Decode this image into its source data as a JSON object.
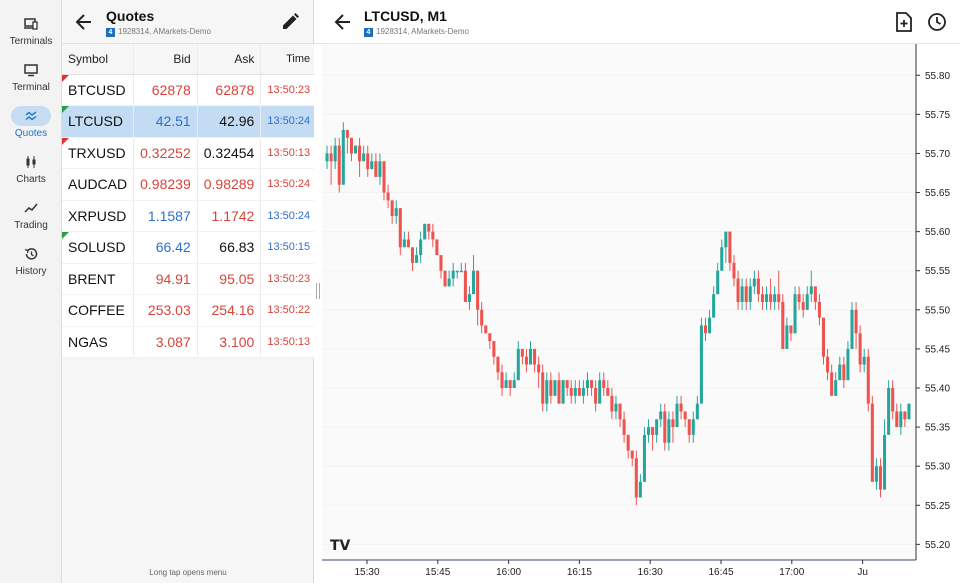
{
  "nav": {
    "items": [
      {
        "id": "terminals",
        "label": "Terminals",
        "icon": "devices-icon",
        "active": false
      },
      {
        "id": "terminal",
        "label": "Terminal",
        "icon": "monitor-icon",
        "active": false
      },
      {
        "id": "quotes",
        "label": "Quotes",
        "icon": "quotes-icon",
        "active": true
      },
      {
        "id": "charts",
        "label": "Charts",
        "icon": "candles-icon",
        "active": false
      },
      {
        "id": "trading",
        "label": "Trading",
        "icon": "trend-icon",
        "active": false
      },
      {
        "id": "history",
        "label": "History",
        "icon": "history-icon",
        "active": false
      }
    ]
  },
  "quotes": {
    "title": "Quotes",
    "account_badge": "4",
    "account": "1928314, AMarkets-Demo",
    "columns": {
      "symbol": "Symbol",
      "bid": "Bid",
      "ask": "Ask",
      "time": "Time"
    },
    "rows": [
      {
        "symbol": "BTCUSD",
        "bid": "62878",
        "ask": "62878",
        "time": "13:50:23",
        "tick": "down",
        "bid_dir": "down",
        "ask_dir": "down",
        "time_dir": "down"
      },
      {
        "symbol": "LTCUSD",
        "bid": "42.51",
        "ask": "42.96",
        "time": "13:50:24",
        "tick": "up",
        "bid_dir": "up",
        "ask_dir": "neutral",
        "time_dir": "up",
        "selected": true
      },
      {
        "symbol": "TRXUSD",
        "bid": "0.32252",
        "ask": "0.32454",
        "time": "13:50:13",
        "tick": "down",
        "bid_dir": "down",
        "ask_dir": "neutral",
        "time_dir": "down"
      },
      {
        "symbol": "AUDCAD",
        "bid": "0.98239",
        "ask": "0.98289",
        "time": "13:50:24",
        "tick": "",
        "bid_dir": "down",
        "ask_dir": "down",
        "time_dir": "down"
      },
      {
        "symbol": "XRPUSD",
        "bid": "1.1587",
        "ask": "1.1742",
        "time": "13:50:24",
        "tick": "",
        "bid_dir": "up",
        "ask_dir": "down",
        "time_dir": "up"
      },
      {
        "symbol": "SOLUSD",
        "bid": "66.42",
        "ask": "66.83",
        "time": "13:50:15",
        "tick": "up",
        "bid_dir": "up",
        "ask_dir": "neutral",
        "time_dir": "up"
      },
      {
        "symbol": "BRENT",
        "bid": "94.91",
        "ask": "95.05",
        "time": "13:50:23",
        "tick": "",
        "bid_dir": "down",
        "ask_dir": "down",
        "time_dir": "down"
      },
      {
        "symbol": "COFFEE",
        "bid": "253.03",
        "ask": "254.16",
        "time": "13:50:22",
        "tick": "",
        "bid_dir": "down",
        "ask_dir": "down",
        "time_dir": "down"
      },
      {
        "symbol": "NGAS",
        "bid": "3.087",
        "ask": "3.100",
        "time": "13:50:13",
        "tick": "",
        "bid_dir": "down",
        "ask_dir": "down",
        "time_dir": "down"
      }
    ],
    "hint": "Long tap opens menu"
  },
  "chart": {
    "title": "LTCUSD, M1",
    "account_badge": "4",
    "account": "1928314, AMarkets-Demo",
    "logo": "TV",
    "colors": {
      "bull": "#26a69a",
      "bear": "#ef5350",
      "grid": "#f2f2f2",
      "bg": "#fafafa"
    }
  },
  "chart_data": {
    "type": "candlestick",
    "symbol": "LTCUSD",
    "timeframe": "M1",
    "ylim": [
      55.18,
      55.84
    ],
    "y_ticks": [
      "55.80",
      "55.75",
      "55.70",
      "55.65",
      "55.60",
      "55.55",
      "55.50",
      "55.45",
      "55.40",
      "55.35",
      "55.30",
      "55.25",
      "55.20"
    ],
    "x_ticks": [
      "15:30",
      "15:45",
      "16:00",
      "16:15",
      "16:30",
      "16:45",
      "17:00",
      "Ju"
    ],
    "candles": [
      [
        55.69,
        55.7,
        55.68,
        55.71
      ],
      [
        55.7,
        55.69,
        55.66,
        55.71
      ],
      [
        55.69,
        55.71,
        55.68,
        55.72
      ],
      [
        55.71,
        55.66,
        55.65,
        55.72
      ],
      [
        55.66,
        55.73,
        55.66,
        55.74
      ],
      [
        55.73,
        55.72,
        55.7,
        55.73
      ],
      [
        55.72,
        55.7,
        55.69,
        55.72
      ],
      [
        55.7,
        55.71,
        55.7,
        55.71
      ],
      [
        55.71,
        55.69,
        55.67,
        55.72
      ],
      [
        55.69,
        55.7,
        55.69,
        55.71
      ],
      [
        55.7,
        55.68,
        55.67,
        55.71
      ],
      [
        55.68,
        55.69,
        55.68,
        55.7
      ],
      [
        55.69,
        55.67,
        55.67,
        55.7
      ],
      [
        55.67,
        55.69,
        55.66,
        55.7
      ],
      [
        55.69,
        55.65,
        55.64,
        55.69
      ],
      [
        55.65,
        55.64,
        55.63,
        55.66
      ],
      [
        55.64,
        55.62,
        55.61,
        55.64
      ],
      [
        55.62,
        55.63,
        55.61,
        55.64
      ],
      [
        55.63,
        55.58,
        55.57,
        55.63
      ],
      [
        55.58,
        55.59,
        55.58,
        55.6
      ],
      [
        55.59,
        55.58,
        55.58,
        55.6
      ],
      [
        55.58,
        55.56,
        55.55,
        55.58
      ],
      [
        55.56,
        55.57,
        55.56,
        55.58
      ],
      [
        55.57,
        55.59,
        55.56,
        55.6
      ],
      [
        55.59,
        55.61,
        55.59,
        55.61
      ],
      [
        55.61,
        55.6,
        55.59,
        55.61
      ],
      [
        55.6,
        55.59,
        55.58,
        55.61
      ],
      [
        55.59,
        55.57,
        55.57,
        55.59
      ],
      [
        55.57,
        55.55,
        55.54,
        55.57
      ],
      [
        55.55,
        55.53,
        55.53,
        55.55
      ],
      [
        55.53,
        55.54,
        55.53,
        55.55
      ],
      [
        55.54,
        55.55,
        55.53,
        55.56
      ],
      [
        55.55,
        55.55,
        55.54,
        55.55
      ],
      [
        55.55,
        55.55,
        55.55,
        55.56
      ],
      [
        55.55,
        55.51,
        55.51,
        55.56
      ],
      [
        55.51,
        55.52,
        55.5,
        55.53
      ],
      [
        55.52,
        55.55,
        55.52,
        55.57
      ],
      [
        55.55,
        55.5,
        55.48,
        55.55
      ],
      [
        55.5,
        55.48,
        55.47,
        55.51
      ],
      [
        55.48,
        55.47,
        55.47,
        55.48
      ],
      [
        55.47,
        55.46,
        55.45,
        55.47
      ],
      [
        55.46,
        55.44,
        55.43,
        55.46
      ],
      [
        55.44,
        55.42,
        55.41,
        55.44
      ],
      [
        55.42,
        55.4,
        55.39,
        55.43
      ],
      [
        55.4,
        55.41,
        55.4,
        55.42
      ],
      [
        55.41,
        55.4,
        55.39,
        55.41
      ],
      [
        55.4,
        55.41,
        55.4,
        55.42
      ],
      [
        55.41,
        55.45,
        55.41,
        55.46
      ],
      [
        55.45,
        55.44,
        55.43,
        55.45
      ],
      [
        55.44,
        55.43,
        55.42,
        55.45
      ],
      [
        55.43,
        55.45,
        55.43,
        55.46
      ],
      [
        55.45,
        55.43,
        55.42,
        55.45
      ],
      [
        55.43,
        55.42,
        55.4,
        55.44
      ],
      [
        55.42,
        55.38,
        55.37,
        55.43
      ],
      [
        55.38,
        55.41,
        55.37,
        55.42
      ],
      [
        55.41,
        55.39,
        55.38,
        55.42
      ],
      [
        55.39,
        55.41,
        55.39,
        55.41
      ],
      [
        55.41,
        55.38,
        55.38,
        55.42
      ],
      [
        55.38,
        55.41,
        55.38,
        55.41
      ],
      [
        55.41,
        55.4,
        55.39,
        55.41
      ],
      [
        55.4,
        55.39,
        55.38,
        55.41
      ],
      [
        55.39,
        55.4,
        55.38,
        55.41
      ],
      [
        55.4,
        55.39,
        55.39,
        55.41
      ],
      [
        55.39,
        55.4,
        55.38,
        55.41
      ],
      [
        55.4,
        55.41,
        55.39,
        55.42
      ],
      [
        55.41,
        55.4,
        55.39,
        55.41
      ],
      [
        55.4,
        55.38,
        55.37,
        55.41
      ],
      [
        55.38,
        55.41,
        55.38,
        55.42
      ],
      [
        55.41,
        55.4,
        55.39,
        55.42
      ],
      [
        55.4,
        55.39,
        55.39,
        55.41
      ],
      [
        55.39,
        55.37,
        55.36,
        55.4
      ],
      [
        55.37,
        55.38,
        55.36,
        55.39
      ],
      [
        55.38,
        55.36,
        55.35,
        55.38
      ],
      [
        55.36,
        55.34,
        55.33,
        55.37
      ],
      [
        55.34,
        55.32,
        55.31,
        55.34
      ],
      [
        55.32,
        55.31,
        55.3,
        55.32
      ],
      [
        55.31,
        55.26,
        55.25,
        55.32
      ],
      [
        55.26,
        55.28,
        55.26,
        55.29
      ],
      [
        55.28,
        55.34,
        55.28,
        55.35
      ],
      [
        55.34,
        55.35,
        55.33,
        55.36
      ],
      [
        55.35,
        55.34,
        55.32,
        55.35
      ],
      [
        55.34,
        55.36,
        55.33,
        55.36
      ],
      [
        55.36,
        55.37,
        55.35,
        55.38
      ],
      [
        55.37,
        55.33,
        55.32,
        55.38
      ],
      [
        55.33,
        55.36,
        55.32,
        55.37
      ],
      [
        55.36,
        55.35,
        55.33,
        55.37
      ],
      [
        55.35,
        55.38,
        55.35,
        55.39
      ],
      [
        55.38,
        55.37,
        55.36,
        55.39
      ],
      [
        55.37,
        55.36,
        55.35,
        55.37
      ],
      [
        55.36,
        55.34,
        55.33,
        55.36
      ],
      [
        55.34,
        55.36,
        55.33,
        55.37
      ],
      [
        55.36,
        55.38,
        55.36,
        55.39
      ],
      [
        55.38,
        55.48,
        55.38,
        55.49
      ],
      [
        55.48,
        55.47,
        55.46,
        55.49
      ],
      [
        55.47,
        55.49,
        55.47,
        55.5
      ],
      [
        55.49,
        55.52,
        55.49,
        55.53
      ],
      [
        55.52,
        55.55,
        55.52,
        55.56
      ],
      [
        55.55,
        55.58,
        55.55,
        55.59
      ],
      [
        55.58,
        55.6,
        55.56,
        55.6
      ],
      [
        55.6,
        55.56,
        55.55,
        55.6
      ],
      [
        55.56,
        55.54,
        55.53,
        55.57
      ],
      [
        55.54,
        55.51,
        55.5,
        55.55
      ],
      [
        55.51,
        55.53,
        55.5,
        55.54
      ],
      [
        55.53,
        55.51,
        55.5,
        55.54
      ],
      [
        55.51,
        55.53,
        55.5,
        55.54
      ],
      [
        55.53,
        55.54,
        55.52,
        55.55
      ],
      [
        55.54,
        55.52,
        55.51,
        55.55
      ],
      [
        55.52,
        55.51,
        55.5,
        55.53
      ],
      [
        55.51,
        55.52,
        55.5,
        55.53
      ],
      [
        55.52,
        55.51,
        55.5,
        55.54
      ],
      [
        55.51,
        55.52,
        55.5,
        55.53
      ],
      [
        55.52,
        55.51,
        55.5,
        55.55
      ],
      [
        55.51,
        55.45,
        55.45,
        55.52
      ],
      [
        55.45,
        55.48,
        55.45,
        55.49
      ],
      [
        55.48,
        55.47,
        55.46,
        55.48
      ],
      [
        55.47,
        55.52,
        55.47,
        55.53
      ],
      [
        55.52,
        55.51,
        55.5,
        55.53
      ],
      [
        55.51,
        55.5,
        55.49,
        55.52
      ],
      [
        55.5,
        55.52,
        55.5,
        55.53
      ],
      [
        55.52,
        55.53,
        55.51,
        55.55
      ],
      [
        55.53,
        55.51,
        55.5,
        55.53
      ],
      [
        55.51,
        55.49,
        55.48,
        55.52
      ],
      [
        55.49,
        55.44,
        55.43,
        55.49
      ],
      [
        55.44,
        55.42,
        55.41,
        55.45
      ],
      [
        55.42,
        55.39,
        55.39,
        55.43
      ],
      [
        55.39,
        55.41,
        55.39,
        55.42
      ],
      [
        55.41,
        55.43,
        55.41,
        55.44
      ],
      [
        55.43,
        55.41,
        55.4,
        55.44
      ],
      [
        55.41,
        55.45,
        55.41,
        55.46
      ],
      [
        55.45,
        55.5,
        55.45,
        55.51
      ],
      [
        55.5,
        55.47,
        55.45,
        55.51
      ],
      [
        55.47,
        55.43,
        55.42,
        55.48
      ],
      [
        55.43,
        55.44,
        55.42,
        55.45
      ],
      [
        55.44,
        55.38,
        55.37,
        55.45
      ],
      [
        55.38,
        55.28,
        55.28,
        55.39
      ],
      [
        55.28,
        55.3,
        55.27,
        55.31
      ],
      [
        55.3,
        55.27,
        55.26,
        55.31
      ],
      [
        55.27,
        55.34,
        55.27,
        55.36
      ],
      [
        55.34,
        55.4,
        55.34,
        55.41
      ],
      [
        55.4,
        55.37,
        55.36,
        55.41
      ],
      [
        55.37,
        55.35,
        55.35,
        55.38
      ],
      [
        55.35,
        55.37,
        55.34,
        55.38
      ],
      [
        55.37,
        55.36,
        55.35,
        55.37
      ],
      [
        55.36,
        55.38,
        55.36,
        55.38
      ]
    ]
  }
}
